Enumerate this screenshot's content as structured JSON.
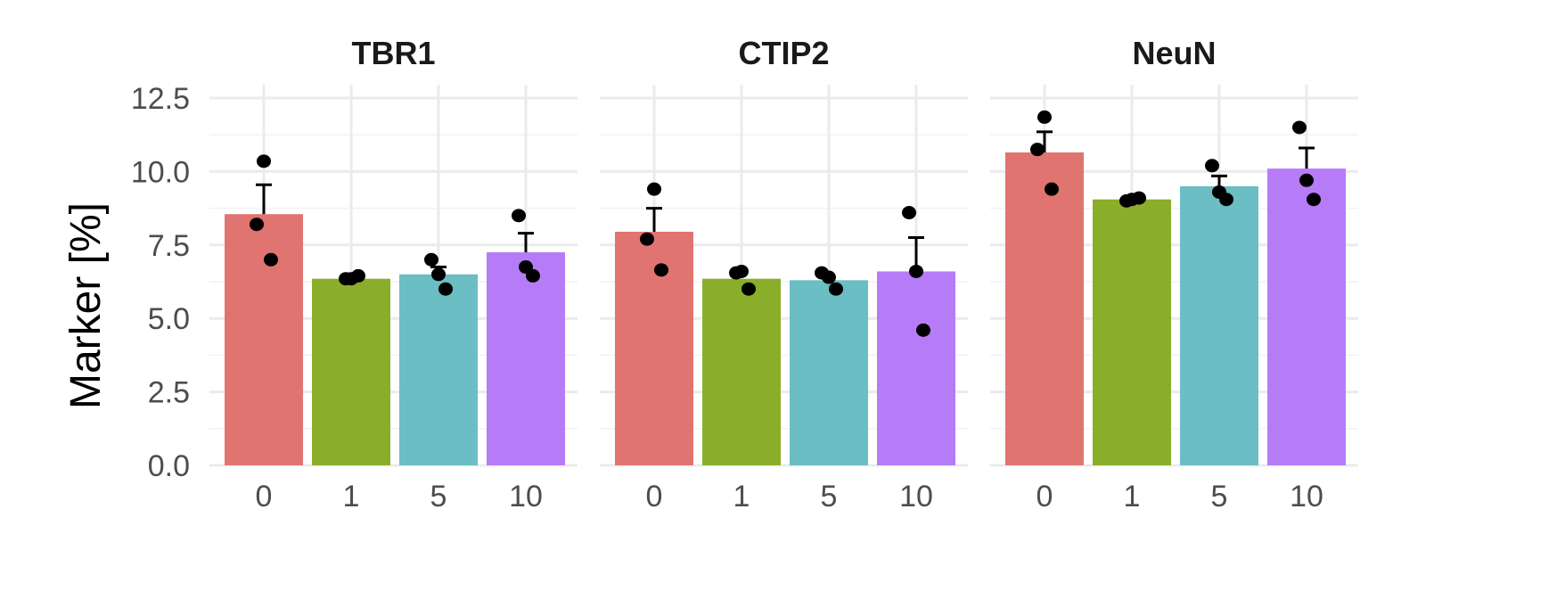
{
  "chart_data": {
    "type": "bar",
    "ylabel": "Marker [%]",
    "xlabel": "",
    "ylim": [
      0,
      12.5
    ],
    "yticks": [
      "0.0",
      "2.5",
      "5.0",
      "7.5",
      "10.0",
      "12.5"
    ],
    "categories": [
      "0",
      "1",
      "5",
      "10"
    ],
    "colors": [
      "#E07470",
      "#8AAE2A",
      "#6ABEC4",
      "#B67CF7"
    ],
    "grid": true,
    "panels": [
      {
        "title": "TBR1",
        "values": [
          8.55,
          6.35,
          6.5,
          7.25
        ],
        "errors": [
          9.55,
          null,
          6.75,
          7.9
        ],
        "points": [
          [
            10.35,
            8.2,
            7.0
          ],
          [
            6.35,
            6.35,
            6.45
          ],
          [
            7.0,
            6.5,
            6.0
          ],
          [
            8.5,
            6.75,
            6.45
          ]
        ]
      },
      {
        "title": "CTIP2",
        "values": [
          7.95,
          6.35,
          6.3,
          6.6
        ],
        "errors": [
          8.75,
          null,
          null,
          7.75
        ],
        "points": [
          [
            9.4,
            7.7,
            6.65
          ],
          [
            6.55,
            6.6,
            6.0
          ],
          [
            6.55,
            6.4,
            6.0
          ],
          [
            8.6,
            6.6,
            4.6
          ]
        ]
      },
      {
        "title": "NeuN",
        "values": [
          10.65,
          9.05,
          9.5,
          10.1
        ],
        "errors": [
          11.35,
          null,
          9.85,
          10.8
        ],
        "points": [
          [
            11.85,
            10.75,
            9.4
          ],
          [
            9.0,
            9.05,
            9.1
          ],
          [
            10.2,
            9.3,
            9.05
          ],
          [
            11.5,
            9.7,
            9.05
          ]
        ]
      }
    ]
  }
}
